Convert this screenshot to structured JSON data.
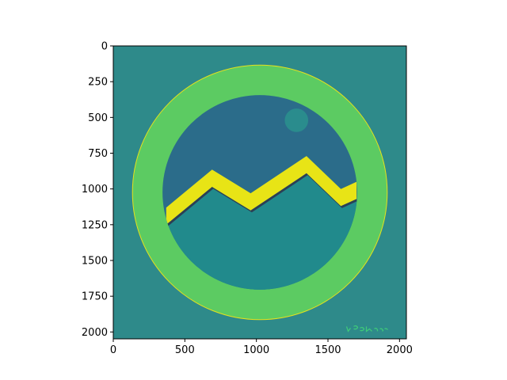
{
  "chart_data": {
    "type": "image",
    "title": "",
    "xlabel": "",
    "ylabel": "",
    "image_size": [
      2048,
      2048
    ],
    "xlim": [
      0,
      2048
    ],
    "ylim": [
      2048,
      0
    ],
    "x_ticks": [
      0,
      500,
      1000,
      1500,
      2000
    ],
    "y_ticks": [
      0,
      250,
      500,
      750,
      1000,
      1250,
      1500,
      1750,
      2000
    ],
    "grid": false,
    "legend": "none",
    "colormap": "viridis",
    "image_content": {
      "background_color": "#2e8a8a",
      "ring": {
        "center": [
          1024,
          1024
        ],
        "outer_radius": 890,
        "inner_radius": 680,
        "color": "#5ccb62",
        "outline_color": "#e6e11c"
      },
      "disc_color": "#2b6c8a",
      "lower_disc_color": "#218a8c",
      "moon": {
        "center": [
          1280,
          520
        ],
        "radius": 82,
        "color": "#2a8c8d"
      },
      "mountain_line": [
        [
          370,
          1130
        ],
        [
          690,
          865
        ],
        [
          960,
          1030
        ],
        [
          1350,
          770
        ],
        [
          1590,
          1000
        ],
        [
          1700,
          950
        ]
      ],
      "mountain_color": "#e8e416",
      "watermark_color": "#3ec97a"
    }
  }
}
